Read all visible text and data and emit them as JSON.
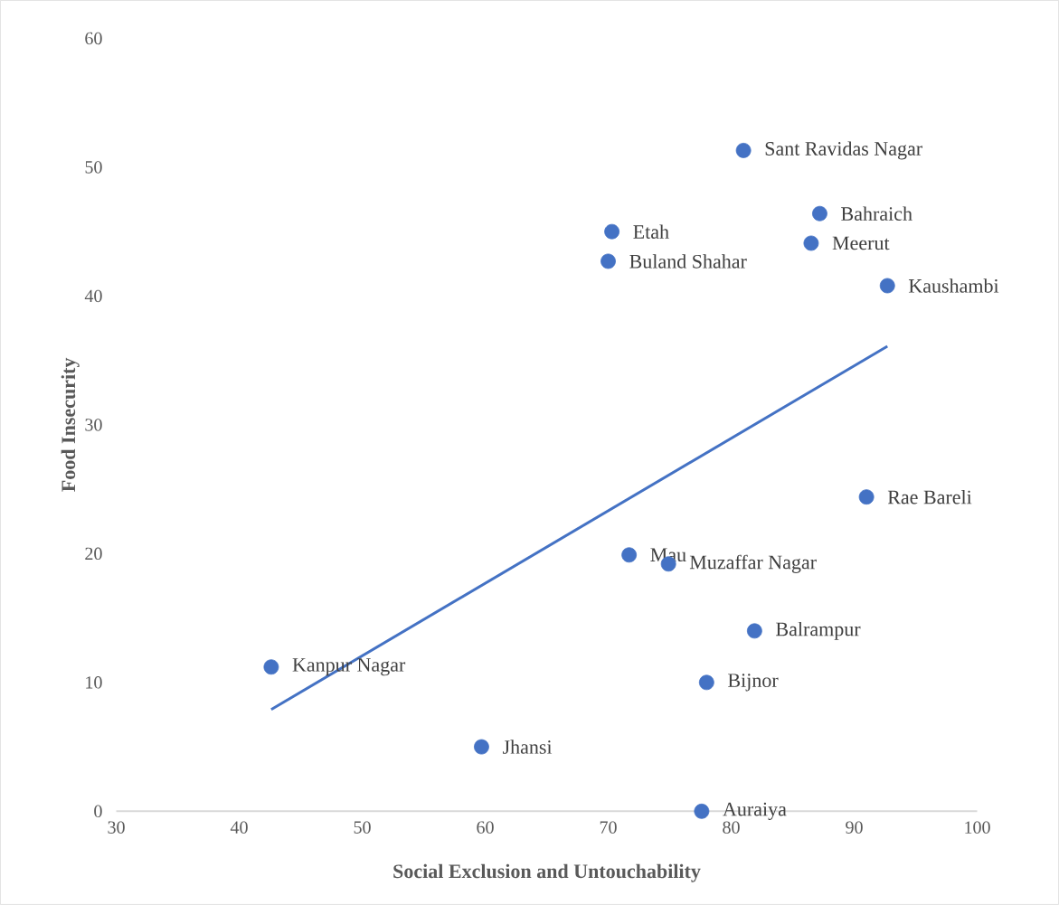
{
  "chart_data": {
    "type": "scatter",
    "xlabel": "Social Exclusion and Untouchability",
    "ylabel": "Food Insecurity",
    "xlim": [
      30,
      100
    ],
    "ylim": [
      0,
      60
    ],
    "xticks": [
      30,
      40,
      50,
      60,
      70,
      80,
      90,
      100
    ],
    "yticks": [
      0,
      10,
      20,
      30,
      40,
      50,
      60
    ],
    "series": [
      {
        "marker": "circle",
        "color": "#4472c4",
        "x": [
          81.0,
          87.2,
          70.3,
          86.5,
          70.0,
          92.7,
          91.0,
          71.7,
          74.9,
          81.9,
          42.6,
          78.0,
          59.7,
          77.6
        ],
        "values": [
          51.3,
          46.4,
          45.0,
          44.1,
          42.7,
          40.8,
          24.4,
          19.9,
          19.2,
          14.0,
          11.2,
          10.0,
          5.0,
          0
        ]
      },
      {
        "type": "line",
        "color": "#4472c4",
        "x": [
          42.6,
          92.7
        ],
        "values": [
          7.9,
          36.1
        ]
      }
    ],
    "annotations": [
      {
        "text": "Sant Ravidas Nagar",
        "x": 81.0,
        "y": 51.3
      },
      {
        "text": "Bahraich",
        "x": 87.2,
        "y": 46.4
      },
      {
        "text": "Etah",
        "x": 70.3,
        "y": 45.0
      },
      {
        "text": "Meerut",
        "x": 86.5,
        "y": 44.1
      },
      {
        "text": "Buland Shahar",
        "x": 70.0,
        "y": 42.7
      },
      {
        "text": "Kaushambi",
        "x": 92.7,
        "y": 40.8
      },
      {
        "text": "Rae Bareli",
        "x": 91.0,
        "y": 24.4
      },
      {
        "text": "Mau",
        "x": 71.7,
        "y": 19.9
      },
      {
        "text": "Muzaffar Nagar",
        "x": 74.9,
        "y": 19.2
      },
      {
        "text": "Balrampur",
        "x": 81.9,
        "y": 14.0
      },
      {
        "text": "Kanpur Nagar",
        "x": 42.6,
        "y": 11.2
      },
      {
        "text": "Bijnor",
        "x": 78.0,
        "y": 10.0
      },
      {
        "text": "Jhansi",
        "x": 59.7,
        "y": 5.0
      },
      {
        "text": "Auraiya",
        "x": 77.6,
        "y": 0
      }
    ]
  }
}
